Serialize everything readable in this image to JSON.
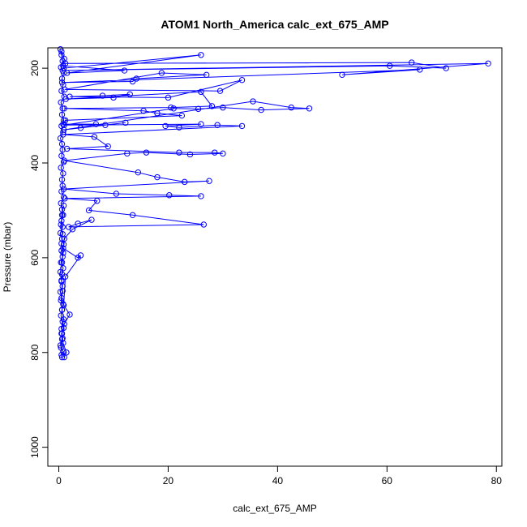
{
  "chart_data": {
    "type": "scatter",
    "title": "ATOM1 North_America calc_ext_675_AMP",
    "xlabel": "calc_ext_675_AMP",
    "ylabel": "Pressure (mbar)",
    "xlim": [
      -2,
      81
    ],
    "ylim": [
      1040,
      157
    ],
    "y_reversed": true,
    "x_ticks": [
      0,
      20,
      40,
      60,
      80
    ],
    "x_tick_labels": [
      "0",
      "20",
      "40",
      "60",
      "80"
    ],
    "y_ticks": [
      200,
      400,
      600,
      800,
      1000
    ],
    "y_tick_labels": [
      "200",
      "400",
      "600",
      "800",
      "1000"
    ],
    "grid": false,
    "legend": "none",
    "series": [
      {
        "color": "#0000ff",
        "marker": "open-circle",
        "connected": true,
        "x": [
          0.5,
          1.0,
          0.8,
          12.0,
          1.5,
          26.0,
          0.9,
          1.2,
          64.5,
          70.8,
          60.5,
          0.7,
          78.5,
          51.8,
          66.0,
          0.6,
          13.5,
          14.2,
          27.0,
          18.8,
          1.1,
          29.5,
          33.5,
          20.0,
          2.0,
          8.0,
          13.0,
          10.0,
          1.3,
          26.0,
          28.0,
          20.5,
          1.0,
          15.5,
          18.0,
          22.5,
          1.2,
          0.8,
          6.8,
          8.5,
          12.2,
          4.0,
          0.9,
          35.5,
          42.5,
          45.8,
          37.0,
          30.0,
          25.5,
          21.0,
          1.0,
          26.0,
          19.5,
          22.0,
          29.0,
          33.5,
          0.8,
          6.5,
          9.0,
          1.5,
          22.0,
          28.5,
          30.0,
          24.0,
          16.0,
          12.5,
          1.0,
          14.5,
          18.0,
          23.0,
          27.5,
          0.9,
          10.5,
          20.2,
          26.0,
          1.1,
          7.0,
          5.5,
          13.5,
          26.5,
          1.8,
          3.5,
          6.0,
          2.5,
          1.0,
          0.8,
          3.5,
          4.0,
          1.2,
          0.9,
          2.0,
          1.0,
          0.6,
          0.8,
          1.4,
          1.0
        ],
        "y": [
          165,
          180,
          195,
          205,
          210,
          172,
          200,
          190,
          188,
          200,
          195,
          205,
          190,
          214,
          203,
          230,
          228,
          222,
          214,
          210,
          245,
          248,
          225,
          262,
          260,
          258,
          255,
          262,
          265,
          250,
          280,
          283,
          285,
          290,
          295,
          300,
          310,
          318,
          318,
          320,
          315,
          326,
          330,
          270,
          283,
          285,
          288,
          283,
          286,
          285,
          320,
          318,
          322,
          325,
          320,
          322,
          340,
          345,
          365,
          370,
          378,
          378,
          380,
          382,
          378,
          380,
          395,
          420,
          430,
          440,
          438,
          455,
          465,
          468,
          470,
          475,
          480,
          500,
          510,
          530,
          535,
          528,
          520,
          540,
          560,
          580,
          600,
          595,
          640,
          700,
          720,
          740,
          760,
          780,
          800,
          810
        ]
      },
      {
        "color": "#0000ff",
        "marker": "open-circle",
        "connected": true,
        "x": [
          0.3,
          0.5,
          0.7,
          0.4,
          0.9,
          0.6,
          0.8,
          0.5,
          1.0,
          0.4,
          0.7,
          0.6,
          0.9,
          0.5,
          0.8,
          0.3,
          0.6,
          0.7,
          0.5,
          0.9,
          0.4,
          0.8,
          0.6,
          0.7,
          0.5,
          0.9,
          0.4,
          0.6,
          0.8,
          0.5,
          0.7,
          0.3,
          0.6,
          0.9,
          0.5,
          0.7,
          0.4,
          0.8,
          0.6,
          0.5,
          0.7,
          0.3,
          0.5,
          0.8,
          0.6,
          0.4,
          0.7,
          0.9,
          0.5,
          0.6,
          0.3,
          0.8,
          0.5,
          0.6,
          0.4,
          0.7,
          0.5,
          0.9,
          0.6,
          0.4,
          0.7,
          0.5,
          0.3,
          0.6,
          0.8,
          0.5,
          0.7,
          0.4,
          0.6,
          0.9
        ],
        "y": [
          160,
          172,
          185,
          198,
          210,
          222,
          235,
          248,
          260,
          272,
          285,
          298,
          310,
          322,
          335,
          348,
          360,
          372,
          385,
          398,
          410,
          422,
          435,
          448,
          460,
          472,
          485,
          498,
          510,
          522,
          535,
          548,
          560,
          572,
          585,
          598,
          610,
          622,
          635,
          648,
          660,
          672,
          685,
          698,
          710,
          722,
          735,
          748,
          760,
          772,
          785,
          798,
          805,
          810,
          790,
          770,
          750,
          730,
          710,
          690,
          670,
          650,
          630,
          610,
          590,
          570,
          550,
          530,
          510,
          490
        ]
      }
    ]
  }
}
